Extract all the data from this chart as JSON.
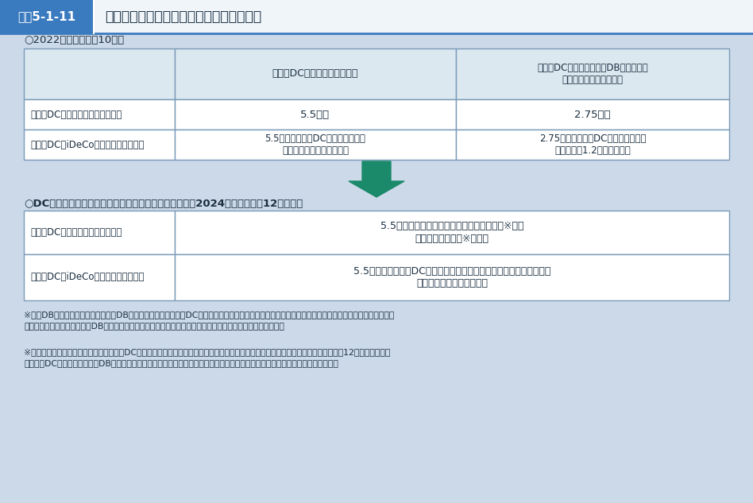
{
  "title_box_color": "#3a7abf",
  "title_label": "図表5-1-11",
  "title_text": "企業型・個人型確定拠出年金の拠出限度額",
  "bg_color": "#ccd9e8",
  "table_bg": "#ffffff",
  "header_bg": "#dce8f0",
  "border_color": "#7a9ab8",
  "title_bar_bottom_color": "#3a7abf",
  "title_right_bg": "#f0f5fa",
  "section1_label": "○2022（令和４）年10月〜",
  "table1_col_headers": [
    "企業型DCのみに加入する場合",
    "企業型DCと確定給付型（DB、厚生年金\n基金等）に加入する場合"
  ],
  "table1_row_headers": [
    "企業型DCの事業主掛金額（月額）",
    "個人型DC（iDeCo）の掛金額（月額）"
  ],
  "table1_data": [
    [
      "5.5万円",
      "2.75万円"
    ],
    [
      "5.5万円－企業型DCの事業主掛金額\n（ただし、２万円を上限）",
      "2.75万円－企業型DCの事業主掛金額\n（ただし、1.2万円を上限）"
    ]
  ],
  "arrow_color": "#1a8a6a",
  "section2_label": "○DC拠出限度額に確定給付型の事業主掛金額を反映後（2024（令和６）年12月以降）",
  "table2_row_headers": [
    "企業型DCの事業主掛金額（月額）",
    "個人型DC（iDeCo）の掛金額（月額）"
  ],
  "table2_data": [
    "5.5万円－確定給付型の事業主掛金相当額（※１）\n（経過措置あり（※２））",
    "5.5万円－（企業型DCの事業主掛金額＋確定給付型の事業主掛金額）\n（ただし、２万円を上限）"
  ],
  "footnote1_prefix": "※１",
  "footnote1_line1": "　DB等の他制度掛金相当額は、DB等の給付水準から企業型DCの事業主掛金に相当する額として算定したもので、複数の他制度に加入している場合",
  "footnote1_line2": "　　は合計額。他制度には、DBのほか、厚生年金基金・私立学校教職員共済制度・石炭鉱業年金基金を含む。",
  "footnote2_prefix": "※２",
  "footnote2_line1": "　経過措置として、施行の際に企業型DCを実施している事業主は、旧制度（現行制度）を適用することとした。ただし、令和６年12月１日以後に企",
  "footnote2_line2": "　　業型DCの事業主掛金額やDBの給付設計の見直しを行う規約変更等を行った場合には、経過措置の適用は終了することとする。",
  "text_color": "#1a2e40"
}
